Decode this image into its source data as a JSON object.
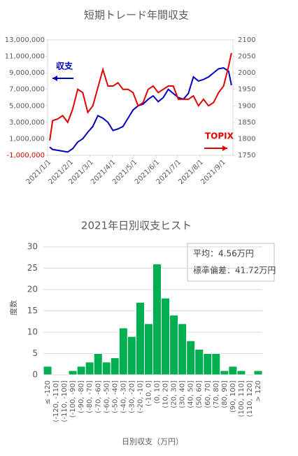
{
  "chart_data": [
    {
      "type": "line",
      "title": "短期トレード年間収支",
      "x": [
        "2021/1/4",
        "2021/1/8",
        "2021/1/15",
        "2021/1/22",
        "2021/1/29",
        "2021/2/5",
        "2021/2/12",
        "2021/2/19",
        "2021/2/26",
        "2021/3/5",
        "2021/3/12",
        "2021/3/19",
        "2021/3/26",
        "2021/4/2",
        "2021/4/9",
        "2021/4/16",
        "2021/4/23",
        "2021/4/30",
        "2021/5/7",
        "2021/5/14",
        "2021/5/21",
        "2021/5/28",
        "2021/6/4",
        "2021/6/11",
        "2021/6/18",
        "2021/6/25",
        "2021/7/2",
        "2021/7/9",
        "2021/7/16",
        "2021/7/23",
        "2021/7/30",
        "2021/8/6",
        "2021/8/13",
        "2021/8/20",
        "2021/8/27",
        "2021/9/3",
        "2021/9/10",
        "2021/9/14"
      ],
      "xlim": [
        "2021/1/1",
        "2021/9/16"
      ],
      "xticks": [
        "2021/1/1",
        "2021/2/1",
        "2021/3/1",
        "2021/4/1",
        "2021/5/1",
        "2021/6/1",
        "2021/7/1",
        "2021/8/1",
        "2021/9/1"
      ],
      "ylim": [
        -1000000,
        13000000
      ],
      "yticks": [
        {
          "value": -1000000,
          "label": "-1,000,000"
        },
        {
          "value": 1000000,
          "label": "1,000,000"
        },
        {
          "value": 3000000,
          "label": "3,000,000"
        },
        {
          "value": 5000000,
          "label": "5,000,000"
        },
        {
          "value": 7000000,
          "label": "7,000,000"
        },
        {
          "value": 9000000,
          "label": "9,000,000"
        },
        {
          "value": 11000000,
          "label": "11,000,000"
        },
        {
          "value": 13000000,
          "label": "13,000,000"
        }
      ],
      "y2lim": [
        1750,
        2100
      ],
      "y2ticks": [
        1750,
        1800,
        1850,
        1900,
        1950,
        2000,
        2050,
        2100
      ],
      "grid": false,
      "series": [
        {
          "name": "収支",
          "color": "#0000c0",
          "values": [
            0,
            -300000,
            -400000,
            -500000,
            -600000,
            -200000,
            600000,
            1000000,
            1800000,
            2500000,
            3800000,
            3500000,
            3000000,
            2000000,
            2200000,
            2500000,
            3500000,
            4500000,
            5000000,
            5200000,
            5800000,
            6200000,
            5500000,
            6000000,
            7000000,
            6500000,
            6000000,
            5800000,
            6500000,
            8500000,
            8000000,
            8200000,
            8500000,
            9000000,
            9500000,
            9600000,
            9200000,
            7500000
          ]
        },
        {
          "name": "TOPIX",
          "color": "#e00000",
          "axis": "y2",
          "values": [
            1795,
            1855,
            1860,
            1870,
            1850,
            1890,
            1950,
            1940,
            1880,
            1900,
            1955,
            2010,
            1960,
            1960,
            1970,
            1950,
            1950,
            1940,
            1900,
            1910,
            1950,
            1960,
            1940,
            1950,
            1960,
            1960,
            1920,
            1920,
            1920,
            1930,
            1900,
            1920,
            1900,
            1910,
            1940,
            1960,
            2020,
            2060
          ]
        }
      ]
    },
    {
      "type": "bar",
      "title": "2021年日別収支ヒスト",
      "categories": [
        "≤ -120",
        "(-120, -110]",
        "(-110, -100]",
        "(-100, -90]",
        "(-90, -80]",
        "(-80, -70]",
        "(-70, -60]",
        "(-60, -50]",
        "(-50, -40]",
        "(-40, -30]",
        "(-30, -20]",
        "(-20, -10]",
        "(-10, 0]",
        "(0, 10]",
        "(10, 20]",
        "(20, 30]",
        "(30, 40]",
        "(40, 50]",
        "(50, 60]",
        "(60, 70]",
        "(70, 80]",
        "(80, 90]",
        "(90, 100]",
        "(100, 110]",
        "(110, 120]",
        "> 120"
      ],
      "values": [
        2,
        0,
        0,
        1,
        2,
        3,
        5,
        3,
        4,
        11,
        9,
        17,
        12,
        26,
        18,
        14,
        12,
        8,
        6,
        5,
        5,
        1,
        2,
        1,
        0,
        1
      ],
      "color": "#00b050",
      "ylim": [
        0,
        30
      ],
      "yticks": [
        0,
        5,
        10,
        15,
        20,
        25,
        30
      ],
      "grid": true,
      "xlabel": "日別収支（万円）",
      "ylabel": "度数",
      "annotations": [
        "平均：4.56万円",
        "標準偏差：41.72万円"
      ]
    }
  ]
}
